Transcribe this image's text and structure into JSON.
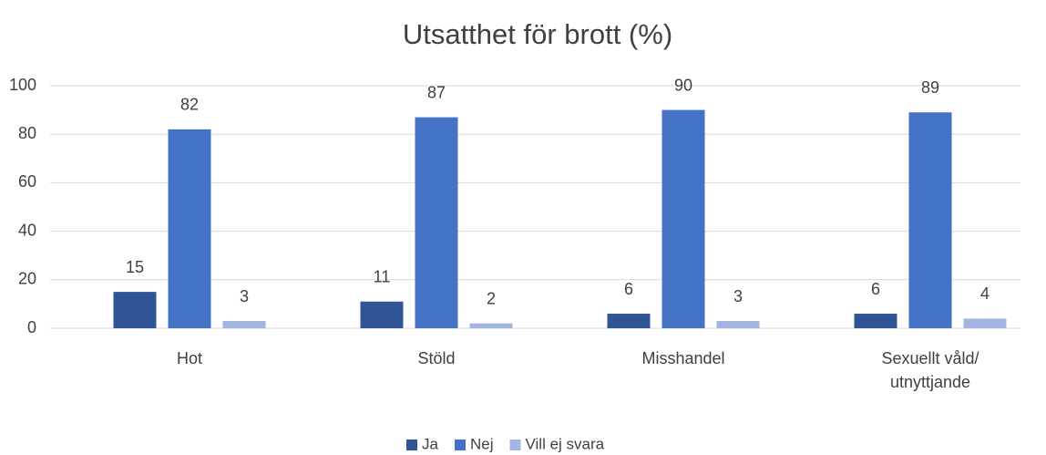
{
  "chart_data": {
    "type": "bar",
    "title": "Utsatthet för brott (%)",
    "categories": [
      "Hot",
      "Stöld",
      "Misshandel",
      "Sexuellt våld/ utnyttjande"
    ],
    "series": [
      {
        "name": "Ja",
        "color": "#2f5597",
        "values": [
          15,
          11,
          6,
          6
        ]
      },
      {
        "name": "Nej",
        "color": "#4472c4",
        "values": [
          82,
          87,
          90,
          89
        ]
      },
      {
        "name": "Vill ej svara",
        "color": "#a4b4e0",
        "values": [
          3,
          2,
          3,
          4
        ]
      }
    ],
    "ylim": [
      0,
      100
    ],
    "yticks": [
      0,
      20,
      40,
      60,
      80,
      100
    ],
    "grid": true,
    "legend": "bottom"
  }
}
